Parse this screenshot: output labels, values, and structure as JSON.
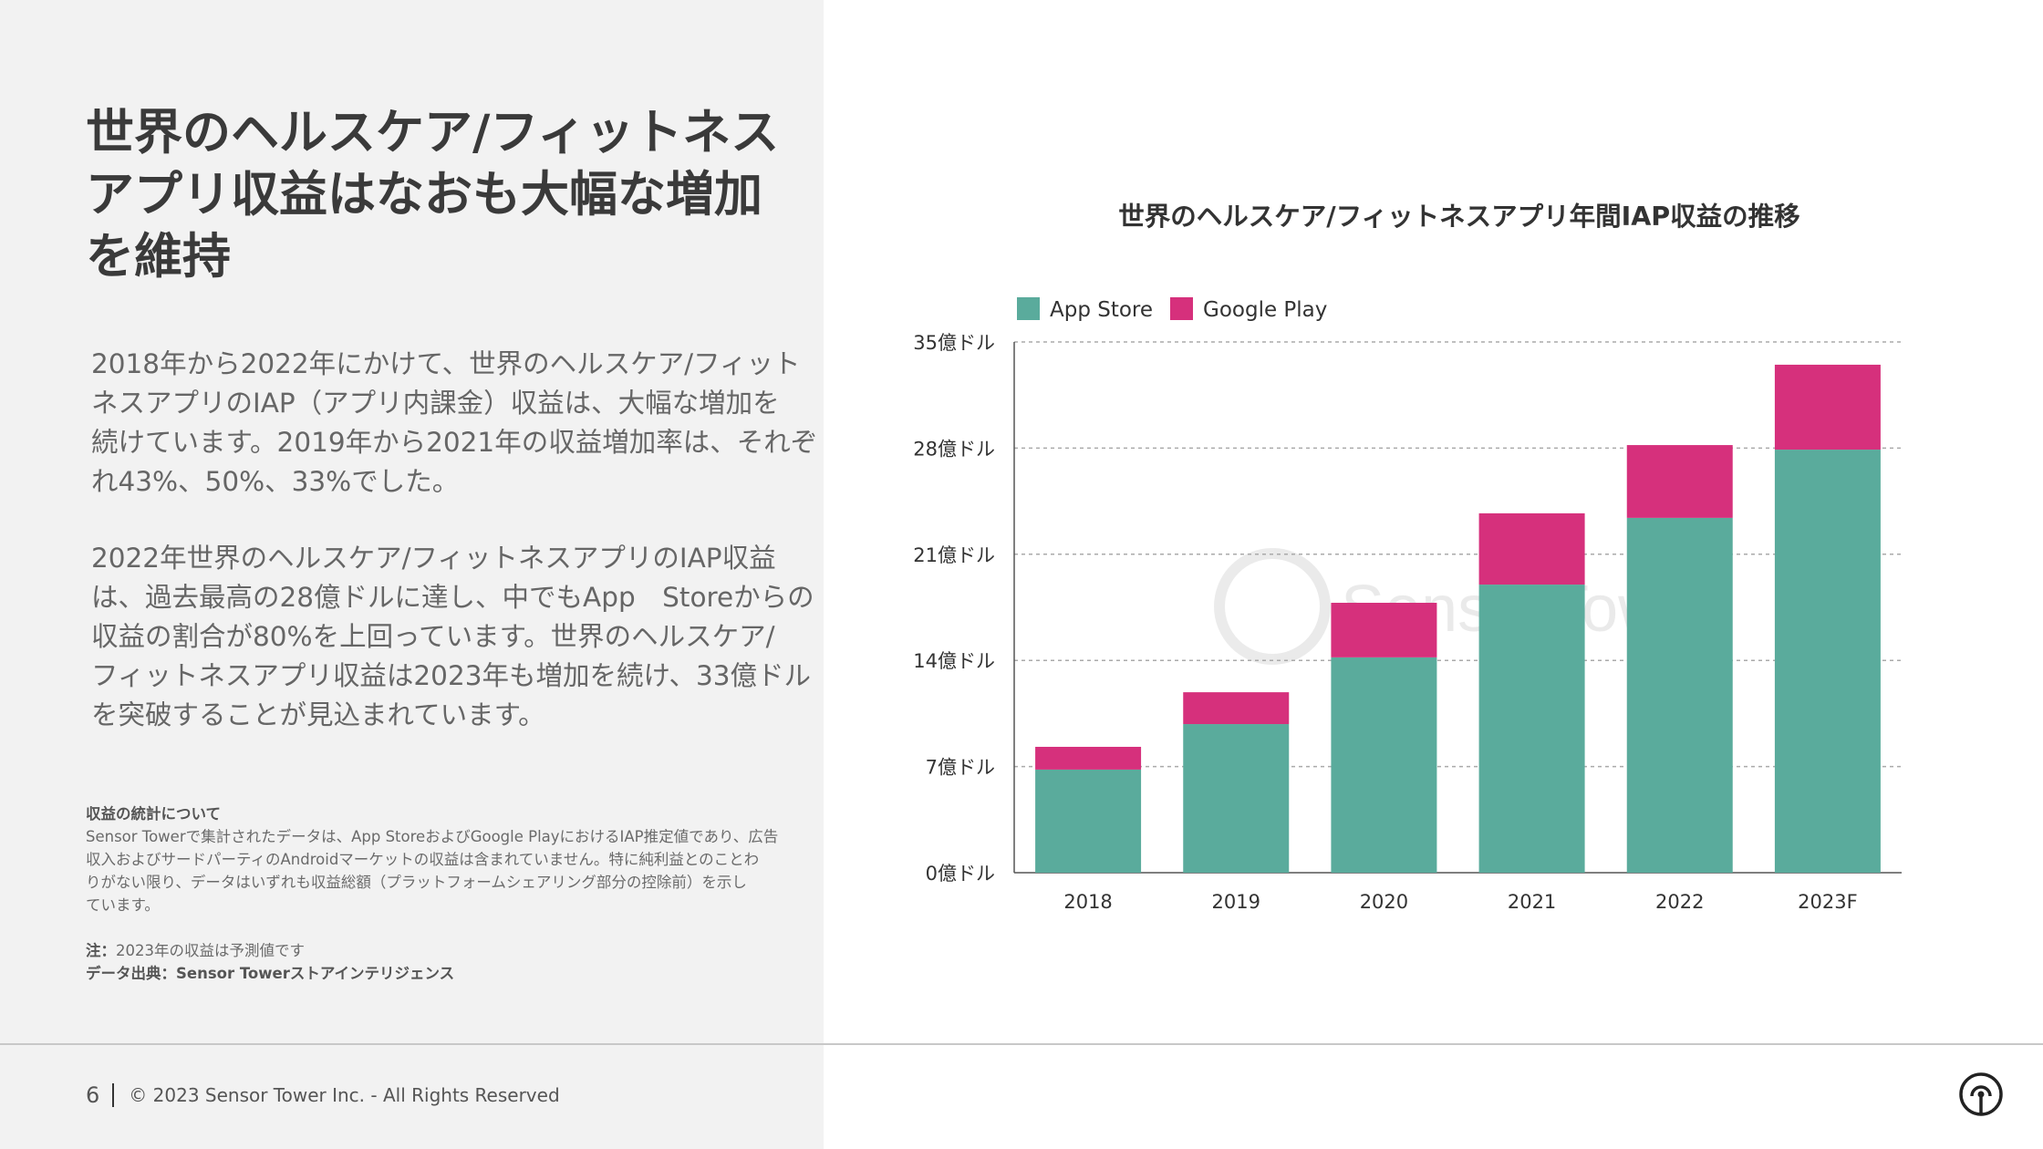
{
  "headline": {
    "lines": [
      "世界のヘルスケア/フィットネス",
      "アプリ収益はなおも大幅な増加",
      "を維持"
    ]
  },
  "body": {
    "paragraph1": [
      "2018年から2022年にかけて、世界のヘルスケア/フィット",
      "ネスアプリのIAP（アプリ内課金）収益は、大幅な増加を",
      "続けています。2019年から2021年の収益増加率は、それぞ",
      "れ43%、50%、33%でした。"
    ],
    "paragraph2": [
      "2022年世界のヘルスケア/フィットネスアプリのIAP収益",
      "は、過去最高の28億ドルに達し、中でもApp　Storeからの",
      "収益の割合が80%を上回っています。世界のヘルスケア/",
      "フィットネスアプリ収益は2023年も増加を続け、33億ドル",
      "を突破することが見込まれています。"
    ]
  },
  "notes": {
    "heading": "収益の統計について",
    "text": [
      "Sensor Towerで集計されたデータは、App StoreおよびGoogle PlayにおけるIAP推定値であり、広告",
      "収入およびサードパーティのAndroidマーケットの収益は含まれていません。特に純利益とのことわ",
      "りがない限り、データはいずれも収益総額（プラットフォームシェアリング部分の控除前）を示し",
      "ています。"
    ],
    "note_label": "注：",
    "note_text": "2023年の収益は予測値です",
    "source": "データ出典：Sensor Towerストアインテリジェンス"
  },
  "footer": {
    "page_number": "6",
    "copyright": "© 2023 Sensor Tower Inc. - All Rights Reserved"
  },
  "watermark": "SensorTower",
  "colors": {
    "app_store": "#5aab9c",
    "google_play": "#d6307c",
    "left_panel": "#f2f2f2"
  },
  "chart_data": {
    "type": "bar",
    "stacked": true,
    "title": "世界のヘルスケア/フィットネスアプリ年間IAP収益の推移",
    "categories": [
      "2018",
      "2019",
      "2020",
      "2021",
      "2022",
      "2023F"
    ],
    "series": [
      {
        "name": "App Store",
        "color": "#5aab9c",
        "values": [
          6.8,
          9.8,
          14.2,
          19.0,
          23.4,
          27.9
        ]
      },
      {
        "name": "Google Play",
        "color": "#d6307c",
        "values": [
          1.5,
          2.1,
          3.6,
          4.7,
          4.8,
          5.6
        ]
      }
    ],
    "ylim": [
      0,
      35
    ],
    "yticks": [
      0,
      7,
      14,
      21,
      28,
      35
    ],
    "ytick_labels": [
      "0億ドル",
      "7億ドル",
      "14億ドル",
      "21億ドル",
      "28億ドル",
      "35億ドル"
    ],
    "xlabel": "",
    "ylabel": "",
    "legend_position": "top-left",
    "grid": "horizontal dotted"
  }
}
